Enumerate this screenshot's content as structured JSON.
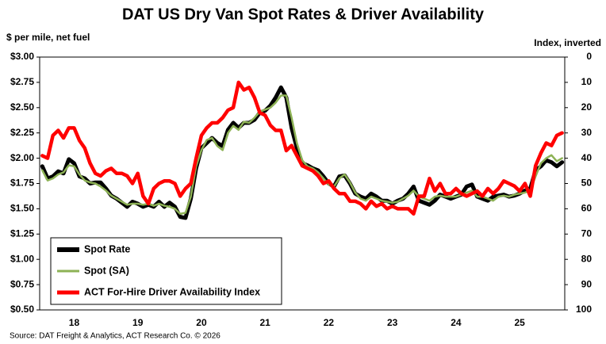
{
  "chart_data": {
    "type": "line",
    "title": "DAT US Dry Van Spot Rates & Driver Availability",
    "y_axis_label": "$ per mile, net fuel",
    "y2_axis_label": "Index, inverted",
    "source": "Source: DAT Freight & Analytics, ACT Research Co. © 2026",
    "categories": [
      null,
      null,
      null,
      null,
      null,
      null,
      "18",
      null,
      null,
      null,
      null,
      null,
      null,
      null,
      null,
      null,
      null,
      null,
      "19",
      null,
      null,
      null,
      null,
      null,
      null,
      null,
      null,
      null,
      null,
      null,
      "20",
      null,
      null,
      null,
      null,
      null,
      null,
      null,
      null,
      null,
      null,
      null,
      "21",
      null,
      null,
      null,
      null,
      null,
      null,
      null,
      null,
      null,
      null,
      null,
      "22",
      null,
      null,
      null,
      null,
      null,
      null,
      null,
      null,
      null,
      null,
      null,
      "23",
      null,
      null,
      null,
      null,
      null,
      null,
      null,
      null,
      null,
      null,
      null,
      "24",
      null,
      null,
      null,
      null,
      null,
      null,
      null,
      null,
      null,
      null,
      null,
      "25",
      null,
      null,
      null,
      null,
      null,
      null,
      null,
      null
    ],
    "ylim": [
      0.5,
      3.0
    ],
    "yticks": [
      {
        "value": 0.5,
        "label": "$0.50"
      },
      {
        "value": 0.75,
        "label": "$0.75"
      },
      {
        "value": 1.0,
        "label": "$1.00"
      },
      {
        "value": 1.25,
        "label": "$1.25"
      },
      {
        "value": 1.5,
        "label": "$1.50"
      },
      {
        "value": 1.75,
        "label": "$1.75"
      },
      {
        "value": 2.0,
        "label": "$2.00"
      },
      {
        "value": 2.25,
        "label": "$2.25"
      },
      {
        "value": 2.5,
        "label": "$2.50"
      },
      {
        "value": 2.75,
        "label": "$2.75"
      },
      {
        "value": 3.0,
        "label": "$3.00"
      }
    ],
    "y2lim": [
      100,
      0
    ],
    "y2ticks": [
      0,
      10,
      20,
      30,
      40,
      50,
      60,
      70,
      80,
      90,
      100
    ],
    "series": [
      {
        "name": "Spot Rate",
        "color": "#000000",
        "values": [
          1.92,
          1.8,
          1.82,
          1.87,
          1.85,
          1.99,
          1.95,
          1.82,
          1.8,
          1.75,
          1.76,
          1.76,
          1.7,
          1.63,
          1.6,
          1.56,
          1.52,
          1.57,
          1.55,
          1.52,
          1.54,
          1.52,
          1.57,
          1.52,
          1.56,
          1.52,
          1.42,
          1.41,
          1.6,
          1.9,
          2.1,
          2.15,
          2.2,
          2.15,
          2.12,
          2.28,
          2.35,
          2.3,
          2.35,
          2.35,
          2.38,
          2.45,
          2.47,
          2.52,
          2.6,
          2.7,
          2.6,
          2.3,
          2.1,
          1.95,
          1.93,
          1.9,
          1.88,
          1.82,
          1.75,
          1.72,
          1.82,
          1.83,
          1.75,
          1.65,
          1.62,
          1.6,
          1.65,
          1.62,
          1.58,
          1.58,
          1.55,
          1.58,
          1.6,
          1.65,
          1.72,
          1.58,
          1.56,
          1.54,
          1.58,
          1.64,
          1.62,
          1.6,
          1.62,
          1.64,
          1.72,
          1.74,
          1.62,
          1.6,
          1.58,
          1.62,
          1.63,
          1.64,
          1.62,
          1.63,
          1.65,
          1.68,
          1.7,
          1.88,
          1.92,
          1.98,
          1.96,
          1.92,
          1.96
        ]
      },
      {
        "name": "Spot (SA)",
        "color": "#8db255",
        "values": [
          1.88,
          1.78,
          1.8,
          1.84,
          1.86,
          1.93,
          1.92,
          1.84,
          1.78,
          1.76,
          1.75,
          1.72,
          1.68,
          1.63,
          1.6,
          1.57,
          1.54,
          1.55,
          1.55,
          1.54,
          1.55,
          1.53,
          1.55,
          1.53,
          1.52,
          1.5,
          1.45,
          1.46,
          1.62,
          1.92,
          2.08,
          2.18,
          2.2,
          2.12,
          2.08,
          2.25,
          2.32,
          2.28,
          2.36,
          2.35,
          2.4,
          2.46,
          2.48,
          2.5,
          2.55,
          2.62,
          2.62,
          2.4,
          2.15,
          1.98,
          1.92,
          1.9,
          1.86,
          1.8,
          1.74,
          1.72,
          1.8,
          1.84,
          1.76,
          1.66,
          1.6,
          1.58,
          1.62,
          1.6,
          1.58,
          1.57,
          1.56,
          1.57,
          1.6,
          1.63,
          1.68,
          1.62,
          1.6,
          1.58,
          1.62,
          1.63,
          1.62,
          1.62,
          1.62,
          1.64,
          1.66,
          1.68,
          1.62,
          1.62,
          1.6,
          1.58,
          1.62,
          1.63,
          1.62,
          1.64,
          1.65,
          1.66,
          1.68,
          1.82,
          1.95,
          2.0,
          2.03,
          1.97,
          2.0
        ]
      },
      {
        "name": "ACT For-Hire Driver Availability Index",
        "color": "#ff0000",
        "axis": "y2",
        "values": [
          39,
          40,
          31,
          29,
          32,
          28,
          28,
          33,
          36,
          42,
          46,
          47,
          45,
          44,
          46,
          46,
          47,
          50,
          46,
          55,
          58,
          52,
          50,
          49,
          49,
          50,
          55,
          52,
          50,
          40,
          31,
          28,
          26,
          26,
          24,
          21,
          20,
          10,
          13,
          12,
          16,
          22,
          23,
          27,
          29,
          29,
          37,
          35,
          39,
          43,
          44,
          45,
          47,
          50,
          49,
          52,
          54,
          54,
          57,
          57,
          58,
          60,
          57,
          59,
          58,
          60,
          59,
          60,
          60,
          60,
          62,
          55,
          55,
          48,
          53,
          50,
          54,
          54,
          52,
          54,
          55,
          54,
          53,
          55,
          52,
          54,
          52,
          49,
          50,
          51,
          53,
          50,
          55,
          43,
          38,
          34,
          35,
          31,
          30
        ]
      }
    ]
  }
}
